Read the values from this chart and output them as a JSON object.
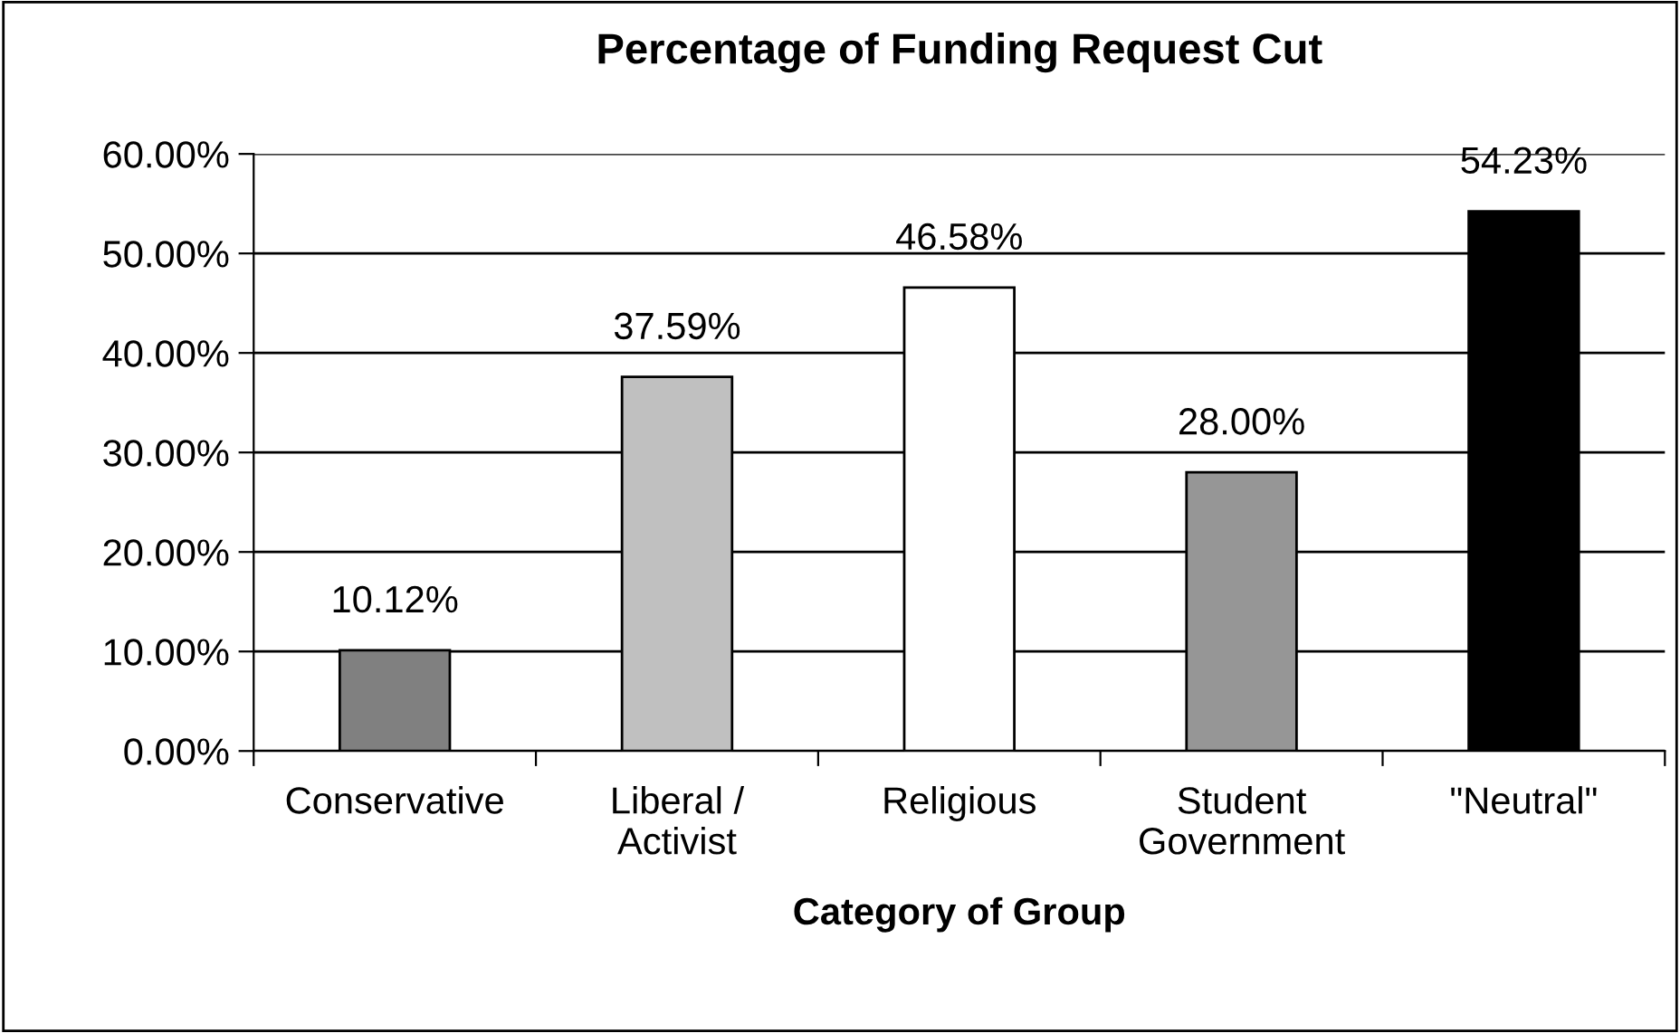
{
  "chart_data": {
    "type": "bar",
    "title": "Percentage of Funding Request Cut",
    "xlabel": "Category of Group",
    "categories": [
      "Conservative",
      "Liberal /\nActivist",
      "Religious",
      "Student\nGovernment",
      "\"Neutral\""
    ],
    "values": [
      10.12,
      37.59,
      46.58,
      28.0,
      54.23
    ],
    "colors": [
      "#808080",
      "#c0c0c0",
      "#ffffff",
      "#969696",
      "#000000"
    ],
    "value_labels": [
      "10.12%",
      "37.59%",
      "46.58%",
      "28.00%",
      "54.23%"
    ],
    "ylim": [
      0,
      60
    ],
    "yticks": [
      {
        "value": 0,
        "label": "0.00%"
      },
      {
        "value": 10,
        "label": "10.00%"
      },
      {
        "value": 20,
        "label": "20.00%"
      },
      {
        "value": 30,
        "label": "30.00%"
      },
      {
        "value": 40,
        "label": "40.00%"
      },
      {
        "value": 50,
        "label": "50.00%"
      },
      {
        "value": 60,
        "label": "60.00%"
      }
    ],
    "grid": "y",
    "legend": false
  }
}
